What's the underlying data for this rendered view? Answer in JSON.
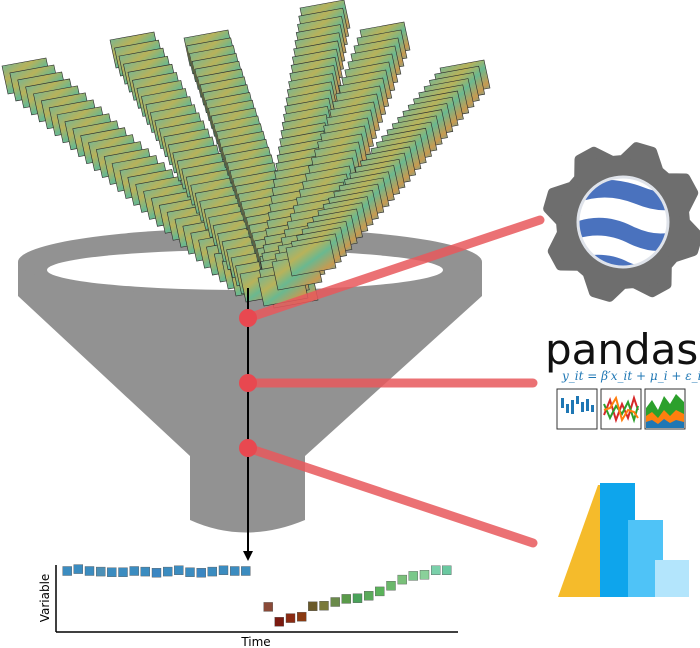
{
  "pandas": {
    "word": "pandas",
    "formula": "y_it = β′x_it + μ_i + ε_it"
  },
  "chart_data": {
    "type": "scatter",
    "xlabel": "Time",
    "ylabel": "Variable",
    "series": [
      {
        "x": [
          1,
          2,
          3,
          4,
          5,
          6,
          7,
          8,
          9,
          10,
          11,
          12,
          13,
          14,
          15,
          16,
          17
        ],
        "y": [
          0.92,
          0.95,
          0.92,
          0.91,
          0.9,
          0.9,
          0.92,
          0.91,
          0.89,
          0.91,
          0.93,
          0.9,
          0.89,
          0.91,
          0.93,
          0.92,
          0.92
        ],
        "colors": [
          "#3b8cc0",
          "#3b8cc0",
          "#3b8cc0",
          "#4c90b7",
          "#3b8cc0",
          "#3b8cc0",
          "#3b8cc0",
          "#3b8cc0",
          "#3a86c2",
          "#3b8cc0",
          "#3b8cc0",
          "#3b8cc0",
          "#3a86c2",
          "#3b8cc0",
          "#3b8cc0",
          "#3b8cc0",
          "#3b8cc0"
        ]
      },
      {
        "x": [
          19,
          20,
          21,
          22,
          23,
          24,
          25,
          26,
          27,
          28,
          29,
          30,
          31,
          32,
          33,
          34,
          35
        ],
        "y": [
          0.34,
          0.1,
          0.16,
          0.18,
          0.35,
          0.36,
          0.42,
          0.47,
          0.48,
          0.52,
          0.59,
          0.68,
          0.78,
          0.84,
          0.86,
          0.93,
          0.93
        ],
        "colors": [
          "#8a4a38",
          "#7a1a10",
          "#8a2a12",
          "#8a3a12",
          "#6a5a2a",
          "#7a7a3a",
          "#6a8a4a",
          "#5a9a4a",
          "#4aa25a",
          "#5aaa5a",
          "#5ab25a",
          "#6ab86a",
          "#7ac07a",
          "#7ac88a",
          "#8ad09a",
          "#7ad0aa",
          "#6ac8a0"
        ]
      }
    ]
  }
}
